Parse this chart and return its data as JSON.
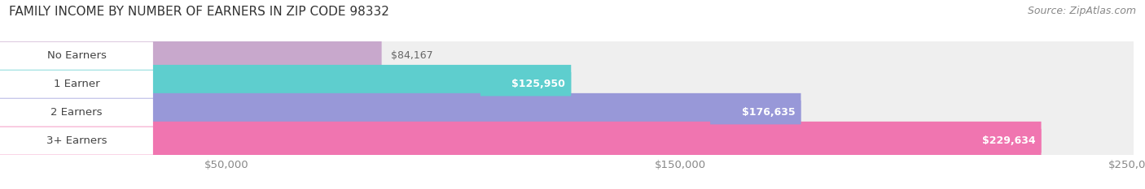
{
  "title": "FAMILY INCOME BY NUMBER OF EARNERS IN ZIP CODE 98332",
  "source": "Source: ZipAtlas.com",
  "categories": [
    "No Earners",
    "1 Earner",
    "2 Earners",
    "3+ Earners"
  ],
  "values": [
    84167,
    125950,
    176635,
    229634
  ],
  "bar_colors": [
    "#c8a8cc",
    "#5ecece",
    "#9898d8",
    "#f075b0"
  ],
  "value_labels": [
    "$84,167",
    "$125,950",
    "$176,635",
    "$229,634"
  ],
  "value_colors": [
    "#888888",
    "#888888",
    "#ffffff",
    "#ffffff"
  ],
  "xlim_max": 250000,
  "xticks": [
    50000,
    150000,
    250000
  ],
  "xtick_labels": [
    "$50,000",
    "$150,000",
    "$250,000"
  ],
  "background_color": "#ffffff",
  "bar_bg_color": "#efefef",
  "title_fontsize": 11,
  "label_fontsize": 9.5,
  "value_fontsize": 9,
  "source_fontsize": 9
}
